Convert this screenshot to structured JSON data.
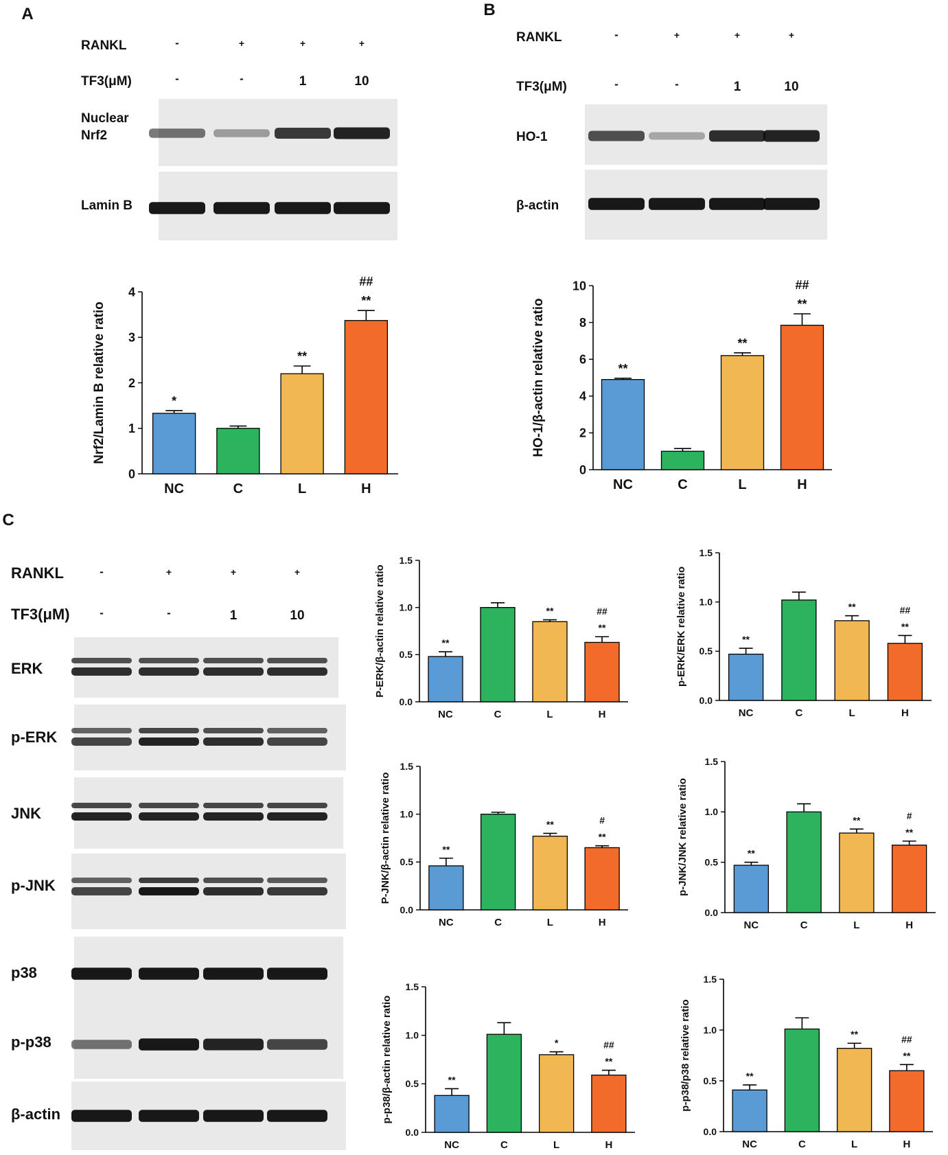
{
  "panels": [
    {
      "id": "A",
      "letter": "A",
      "conditions": {
        "row1": {
          "label": "RANKL",
          "values": [
            "-",
            "+",
            "+",
            "+"
          ]
        },
        "row2": {
          "label": "TF3(μM)",
          "values": [
            "-",
            "-",
            "1",
            "10"
          ]
        }
      },
      "blots": [
        {
          "label": "Nuclear\nNrf2",
          "intensities": [
            0.55,
            0.35,
            0.8,
            0.9
          ],
          "double": false
        },
        {
          "label": "Lamin B",
          "intensities": [
            0.95,
            0.95,
            0.95,
            0.95
          ],
          "double": false
        }
      ]
    },
    {
      "id": "B",
      "letter": "B",
      "conditions": {
        "row1": {
          "label": "RANKL",
          "values": [
            "-",
            "+",
            "+",
            "+"
          ]
        },
        "row2": {
          "label": "TF3(μM)",
          "values": [
            "-",
            "-",
            "1",
            "10"
          ]
        }
      },
      "blots": [
        {
          "label": "HO-1",
          "intensities": [
            0.7,
            0.3,
            0.85,
            0.9
          ],
          "double": false
        },
        {
          "label": "β-actin",
          "intensities": [
            0.95,
            0.95,
            0.95,
            0.95
          ],
          "double": false
        }
      ]
    },
    {
      "id": "C",
      "letter": "C",
      "conditions": {
        "row1": {
          "label": "RANKL",
          "values": [
            "-",
            "+",
            "+",
            "+"
          ]
        },
        "row2": {
          "label": "TF3(μM)",
          "values": [
            "-",
            "-",
            "1",
            "10"
          ]
        }
      },
      "blots": [
        {
          "label": "ERK",
          "intensities": [
            0.85,
            0.85,
            0.85,
            0.85
          ],
          "double": true
        },
        {
          "label": "p-ERK",
          "intensities": [
            0.75,
            0.9,
            0.85,
            0.75
          ],
          "double": true
        },
        {
          "label": "JNK",
          "intensities": [
            0.9,
            0.9,
            0.9,
            0.9
          ],
          "double": true
        },
        {
          "label": "p-JNK",
          "intensities": [
            0.75,
            0.95,
            0.85,
            0.8
          ],
          "double": true
        },
        {
          "label": "p38",
          "intensities": [
            0.95,
            0.95,
            0.95,
            0.95
          ],
          "double": false
        },
        {
          "label": "p-p38",
          "intensities": [
            0.55,
            0.95,
            0.9,
            0.75
          ],
          "double": false
        },
        {
          "label": "β-actin",
          "intensities": [
            0.95,
            0.95,
            0.95,
            0.95
          ],
          "double": false
        }
      ]
    }
  ],
  "colors": {
    "NC": "#5B9BD5",
    "C": "#2DB35E",
    "L": "#F0B753",
    "H": "#F26B2B"
  },
  "chart_data": [
    {
      "id": "A-chart",
      "type": "bar",
      "categories": [
        "NC",
        "C",
        "L",
        "H"
      ],
      "values": [
        1.33,
        1.0,
        2.2,
        3.37
      ],
      "errors": [
        0.06,
        0.05,
        0.17,
        0.22
      ],
      "ylabel": "Nrf2/Lamin B relative ratio",
      "ylim": [
        0,
        4
      ],
      "yticks": [
        "0",
        "1",
        "2",
        "3",
        "4"
      ],
      "marks_star": [
        "*",
        "",
        "**",
        "**"
      ],
      "marks_hash": [
        "",
        "",
        "",
        "##"
      ]
    },
    {
      "id": "B-chart",
      "type": "bar",
      "categories": [
        "NC",
        "C",
        "L",
        "H"
      ],
      "values": [
        4.9,
        1.0,
        6.2,
        7.85
      ],
      "errors": [
        0.07,
        0.15,
        0.15,
        0.62
      ],
      "ylabel": "HO-1/β-actin relative ratio",
      "ylim": [
        0,
        10
      ],
      "yticks": [
        "0",
        "2",
        "4",
        "6",
        "8",
        "10"
      ],
      "marks_star": [
        "**",
        "",
        "**",
        "**"
      ],
      "marks_hash": [
        "",
        "",
        "",
        "##"
      ]
    },
    {
      "id": "C1",
      "type": "bar",
      "categories": [
        "NC",
        "C",
        "L",
        "H"
      ],
      "values": [
        0.48,
        1.0,
        0.85,
        0.63
      ],
      "errors": [
        0.05,
        0.05,
        0.02,
        0.06
      ],
      "ylabel": "P-ERK/β-actin relative ratio",
      "ylim": [
        0,
        1.5
      ],
      "yticks": [
        "0.0",
        "0.5",
        "1.0",
        "1.5"
      ],
      "marks_star": [
        "**",
        "",
        "**",
        "**"
      ],
      "marks_hash": [
        "",
        "",
        "",
        "##"
      ]
    },
    {
      "id": "C2",
      "type": "bar",
      "categories": [
        "NC",
        "C",
        "L",
        "H"
      ],
      "values": [
        0.47,
        1.02,
        0.81,
        0.58
      ],
      "errors": [
        0.06,
        0.08,
        0.05,
        0.08
      ],
      "ylabel": "p-ERK/ERK relative ratio",
      "ylim": [
        0,
        1.5
      ],
      "yticks": [
        "0.0",
        "0.5",
        "1.0",
        "1.5"
      ],
      "marks_star": [
        "**",
        "",
        "**",
        "**"
      ],
      "marks_hash": [
        "",
        "",
        "",
        "##"
      ]
    },
    {
      "id": "C3",
      "type": "bar",
      "categories": [
        "NC",
        "C",
        "L",
        "H"
      ],
      "values": [
        0.46,
        1.0,
        0.77,
        0.65
      ],
      "errors": [
        0.08,
        0.02,
        0.03,
        0.02
      ],
      "ylabel": "P-JNK/β-actin relative ratio",
      "ylim": [
        0,
        1.5
      ],
      "yticks": [
        "0.0",
        "0.5",
        "1.0",
        "1.5"
      ],
      "marks_star": [
        "**",
        "",
        "**",
        "**"
      ],
      "marks_hash": [
        "",
        "",
        "",
        "#"
      ]
    },
    {
      "id": "C4",
      "type": "bar",
      "categories": [
        "NC",
        "C",
        "L",
        "H"
      ],
      "values": [
        0.47,
        1.0,
        0.79,
        0.67
      ],
      "errors": [
        0.03,
        0.08,
        0.04,
        0.04
      ],
      "ylabel": "p-JNK/JNK relative ratio",
      "ylim": [
        0,
        1.5
      ],
      "yticks": [
        "0.0",
        "0.5",
        "1.0",
        "1.5"
      ],
      "marks_star": [
        "**",
        "",
        "**",
        "**"
      ],
      "marks_hash": [
        "",
        "",
        "",
        "#"
      ]
    },
    {
      "id": "C5",
      "type": "bar",
      "categories": [
        "NC",
        "C",
        "L",
        "H"
      ],
      "values": [
        0.38,
        1.01,
        0.8,
        0.59
      ],
      "errors": [
        0.07,
        0.12,
        0.03,
        0.05
      ],
      "ylabel": "p-p38/β-actin relative ratio",
      "ylim": [
        0,
        1.5
      ],
      "yticks": [
        "0.0",
        "0.5",
        "1.0",
        "1.5"
      ],
      "marks_star": [
        "**",
        "",
        "*",
        "**"
      ],
      "marks_hash": [
        "",
        "",
        "",
        "##"
      ]
    },
    {
      "id": "C6",
      "type": "bar",
      "categories": [
        "NC",
        "C",
        "L",
        "H"
      ],
      "values": [
        0.41,
        1.01,
        0.82,
        0.6
      ],
      "errors": [
        0.05,
        0.11,
        0.05,
        0.06
      ],
      "ylabel": "p-p38/p38 relative ratio",
      "ylim": [
        0,
        1.5
      ],
      "yticks": [
        "0.0",
        "0.5",
        "1.0",
        "1.5"
      ],
      "marks_star": [
        "**",
        "",
        "**",
        "**"
      ],
      "marks_hash": [
        "",
        "",
        "",
        "##"
      ]
    }
  ]
}
